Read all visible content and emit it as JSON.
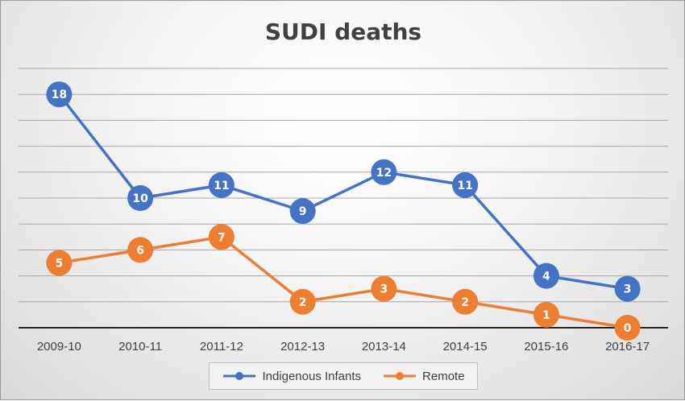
{
  "chart_data": {
    "type": "line",
    "title": "SUDI deaths",
    "categories": [
      "2009-10",
      "2010-11",
      "2011-12",
      "2012-13",
      "2013-14",
      "2014-15",
      "2015-16",
      "2016-17"
    ],
    "ylim": [
      0,
      18
    ],
    "grid": true,
    "legend_position": "bottom",
    "data_labels": true,
    "series": [
      {
        "name": "Indigenous Infants",
        "color": "#4472c4",
        "values": [
          18,
          10,
          11,
          9,
          12,
          11,
          4,
          3
        ]
      },
      {
        "name": "Remote",
        "color": "#ed7d31",
        "values": [
          5,
          6,
          7,
          2,
          3,
          2,
          1,
          0
        ]
      }
    ]
  }
}
